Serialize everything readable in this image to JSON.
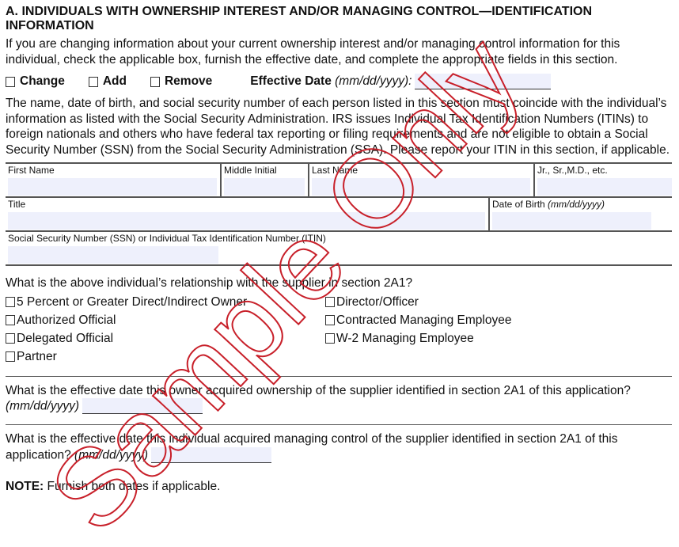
{
  "heading": "A. INDIVIDUALS WITH OWNERSHIP INTEREST AND/OR MANAGING CONTROL—IDENTIFICATION INFORMATION",
  "intro": "If you are changing information about your current ownership interest and/or managing control information for this individual, check the applicable box, furnish the effective date, and complete the appropriate fields in this section.",
  "actions": {
    "change": "Change",
    "add": "Add",
    "remove": "Remove",
    "effective_label": "Effective Date",
    "effective_format": "(mm/dd/yyyy):"
  },
  "notice": "The name, date of birth, and social security number of each person listed in this section must coincide with the individual’s information as listed with the Social Security Administration. IRS issues Individual Tax Identification Numbers (ITINs) to foreign nationals and others who have federal tax reporting or filing requirements and are not eligible to obtain a Social Security Number (SSN) from the Social Security Administration (SSA). Please report your ITIN in this section, if applicable.",
  "fields": {
    "first_name": "First Name",
    "middle_initial": "Middle Initial",
    "last_name": "Last Name",
    "suffix": "Jr., Sr.,M.D., etc.",
    "title": "Title",
    "dob": "Date of Birth",
    "dob_format": "(mm/dd/yyyy)",
    "ssn": "Social Security Number (SSN) or Individual Tax Identification Number (ITIN)"
  },
  "relationship": {
    "question": "What is the above individual’s relationship with the supplier in section 2A1?",
    "options": [
      "5 Percent or Greater Direct/Indirect Owner",
      "Director/Officer",
      "Authorized Official",
      "Contracted Managing Employee",
      "Delegated Official",
      "W-2 Managing Employee",
      "Partner"
    ]
  },
  "q_ownership": "What is the effective date this owner acquired ownership of the supplier identified in section 2A1 of this application?",
  "q_ownership_format": "(mm/dd/yyyy)",
  "q_control": "What is the effective date this individual acquired managing control of the supplier identified in section 2A1 of this application?",
  "q_control_format": "(mm/dd/yyyy)",
  "note_label": "NOTE:",
  "note_text": " Furnish both dates if applicable.",
  "watermark": "Sample Only",
  "colors": {
    "watermark": "#c8202a",
    "field_fill": "#eef0fc"
  }
}
